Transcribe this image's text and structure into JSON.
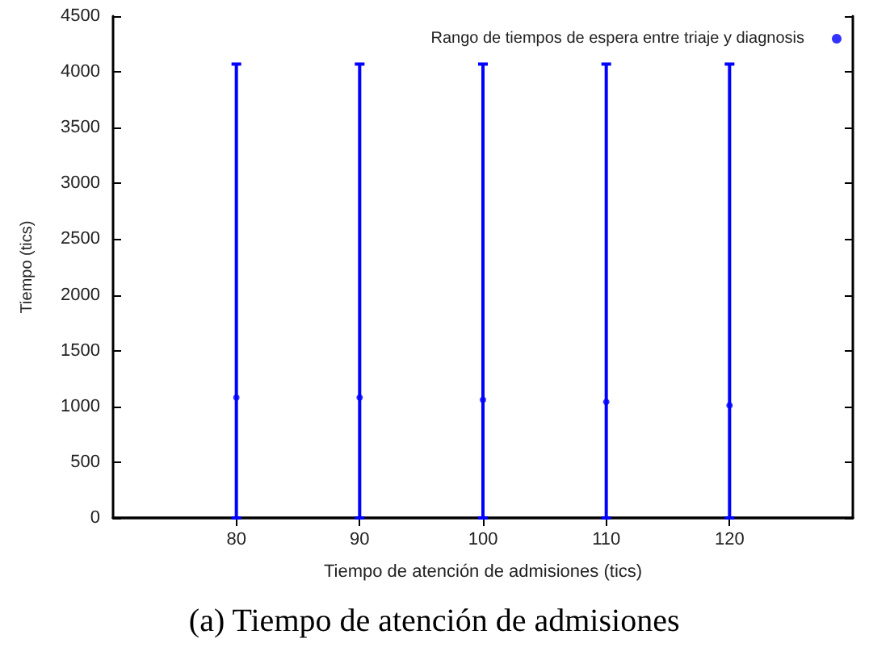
{
  "chart_data": {
    "type": "scatter",
    "xlabel": "Tiempo de atención de admisiones (tics)",
    "ylabel": "Tiempo (tics)",
    "annotations": [
      "(a) Tiempo de atención de admisiones"
    ],
    "x": [
      80,
      90,
      100,
      110,
      120
    ],
    "series": [
      {
        "name": "Rango de tiempos de espera entre triaje y diagnosis",
        "color": "#0000ff",
        "values": [
          1080,
          1080,
          1060,
          1040,
          1010
        ],
        "errors": [
          [
            0,
            4070
          ],
          [
            0,
            4070
          ],
          [
            0,
            4070
          ],
          [
            0,
            4070
          ],
          [
            0,
            4070
          ]
        ]
      }
    ],
    "xlim": [
      70,
      130
    ],
    "xticks": [
      80,
      90,
      100,
      110,
      120
    ],
    "ylim": [
      0,
      4500
    ],
    "yticks": [
      0,
      500,
      1000,
      1500,
      2000,
      2500,
      3000,
      3500,
      4000,
      4500
    ],
    "grid": false,
    "legend": "top right",
    "marker": "circle"
  }
}
